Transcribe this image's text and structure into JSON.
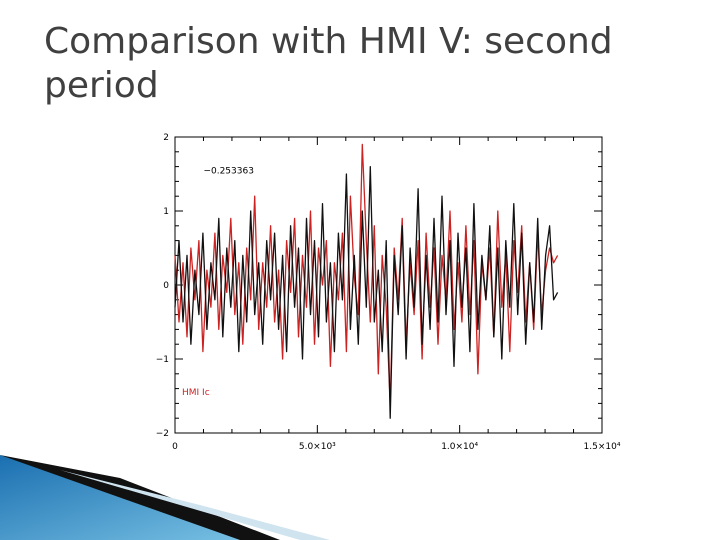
{
  "slide": {
    "title": "Comparison with HMI V: second period"
  },
  "chart_data": {
    "type": "line",
    "title": "",
    "xlabel": "",
    "ylabel": "",
    "xlim": [
      0,
      15000
    ],
    "ylim": [
      -2,
      2
    ],
    "x_ticks": [
      0,
      5000,
      10000,
      15000
    ],
    "x_tick_labels": [
      "0",
      "5.0×10³",
      "1.0×10⁴",
      "1.5×10⁴"
    ],
    "y_ticks": [
      -2,
      -1,
      0,
      1,
      2
    ],
    "y_tick_labels": [
      "−2",
      "−1",
      "0",
      "1",
      "2"
    ],
    "annotations": [
      {
        "text": "−0.253363",
        "x": 1000,
        "y": 1.55,
        "color": "#000000"
      }
    ],
    "legend": {
      "placement": "bottom-left",
      "entries": [
        {
          "label": "HMI  Ic",
          "color": "#cc2222"
        }
      ]
    },
    "grid": false,
    "series": [
      {
        "color": "#cc2222",
        "x": [
          0,
          140,
          280,
          420,
          560,
          700,
          840,
          980,
          1120,
          1260,
          1400,
          1540,
          1680,
          1820,
          1960,
          2100,
          2240,
          2380,
          2520,
          2660,
          2800,
          2940,
          3080,
          3220,
          3360,
          3500,
          3640,
          3780,
          3920,
          4060,
          4200,
          4340,
          4480,
          4620,
          4760,
          4900,
          5040,
          5180,
          5320,
          5460,
          5600,
          5740,
          5880,
          6020,
          6160,
          6300,
          6440,
          6580,
          6720,
          6860,
          7000,
          7140,
          7280,
          7420,
          7560,
          7700,
          7840,
          7980,
          8120,
          8260,
          8400,
          8540,
          8680,
          8820,
          8960,
          9100,
          9240,
          9380,
          9520,
          9660,
          9800,
          9940,
          10080,
          10220,
          10360,
          10500,
          10640,
          10780,
          10920,
          11060,
          11200,
          11340,
          11480,
          11620,
          11760,
          11900,
          12040,
          12180,
          12320,
          12460,
          12600,
          12740,
          12880,
          13020,
          13160,
          13300,
          13440
        ],
        "values": [
          0.4,
          -0.5,
          0.3,
          -0.7,
          0.5,
          -0.2,
          0.6,
          -0.9,
          0.2,
          -0.3,
          0.7,
          -0.6,
          0.4,
          -0.1,
          0.9,
          -0.4,
          0.3,
          -0.8,
          0.5,
          -0.2,
          1.2,
          -0.6,
          0.3,
          -0.3,
          0.8,
          -0.5,
          0.2,
          -1.0,
          0.6,
          -0.1,
          0.9,
          -0.7,
          0.4,
          -0.3,
          1.0,
          -0.8,
          0.5,
          0.0,
          0.6,
          -1.1,
          0.3,
          -0.2,
          0.7,
          -0.9,
          1.2,
          0.1,
          -0.4,
          1.9,
          0.6,
          -0.5,
          0.8,
          -1.2,
          0.4,
          -0.3,
          -1.6,
          0.5,
          -0.2,
          0.9,
          -0.8,
          0.3,
          -0.4,
          0.6,
          -1.0,
          0.7,
          -0.3,
          0.5,
          -0.8,
          0.4,
          -0.2,
          1.0,
          -0.6,
          0.3,
          -0.5,
          0.8,
          -0.4,
          0.6,
          -1.2,
          0.3,
          -0.2,
          0.5,
          -0.7,
          1.0,
          -0.3,
          0.4,
          -0.9,
          0.6,
          -0.1,
          0.8,
          -0.5,
          0.3,
          -0.6,
          0.7,
          -0.4,
          0.2,
          0.5,
          0.3,
          0.4
        ]
      },
      {
        "color": "#111111",
        "x": [
          0,
          140,
          280,
          420,
          560,
          700,
          840,
          980,
          1120,
          1260,
          1400,
          1540,
          1680,
          1820,
          1960,
          2100,
          2240,
          2380,
          2520,
          2660,
          2800,
          2940,
          3080,
          3220,
          3360,
          3500,
          3640,
          3780,
          3920,
          4060,
          4200,
          4340,
          4480,
          4620,
          4760,
          4900,
          5040,
          5180,
          5320,
          5460,
          5600,
          5740,
          5880,
          6020,
          6160,
          6300,
          6440,
          6580,
          6720,
          6860,
          7000,
          7140,
          7280,
          7420,
          7560,
          7700,
          7840,
          7980,
          8120,
          8260,
          8400,
          8540,
          8680,
          8820,
          8960,
          9100,
          9240,
          9380,
          9520,
          9660,
          9800,
          9940,
          10080,
          10220,
          10360,
          10500,
          10640,
          10780,
          10920,
          11060,
          11200,
          11340,
          11480,
          11620,
          11760,
          11900,
          12040,
          12180,
          12320,
          12460,
          12600,
          12740,
          12880,
          13020,
          13160,
          13300,
          13440
        ],
        "values": [
          -0.3,
          0.6,
          -0.5,
          0.4,
          -0.8,
          0.2,
          -0.4,
          0.7,
          -0.6,
          0.3,
          -0.2,
          0.9,
          -0.7,
          0.5,
          -0.3,
          0.6,
          -0.9,
          0.4,
          -0.5,
          1.0,
          -0.4,
          0.3,
          -0.8,
          0.6,
          -0.2,
          0.7,
          -0.6,
          0.4,
          -0.9,
          0.8,
          -0.3,
          0.5,
          -1.0,
          0.9,
          -0.4,
          0.6,
          -0.7,
          1.1,
          -0.5,
          0.3,
          -0.9,
          0.7,
          -0.2,
          1.5,
          -0.6,
          0.4,
          -0.8,
          1.0,
          -0.3,
          1.6,
          -0.5,
          0.2,
          -0.9,
          0.6,
          -1.8,
          0.4,
          -0.4,
          0.8,
          -1.0,
          0.5,
          -0.3,
          1.3,
          -0.8,
          0.4,
          -0.6,
          0.9,
          -0.5,
          1.2,
          -0.4,
          0.6,
          -1.1,
          0.7,
          -0.3,
          0.5,
          -0.9,
          1.1,
          -0.6,
          0.4,
          -0.2,
          0.8,
          -0.7,
          0.5,
          -1.0,
          0.6,
          -0.3,
          1.1,
          -0.4,
          0.7,
          -0.8,
          0.3,
          -0.5,
          0.9,
          -0.6,
          0.4,
          0.8,
          -0.2,
          -0.1
        ]
      }
    ]
  }
}
